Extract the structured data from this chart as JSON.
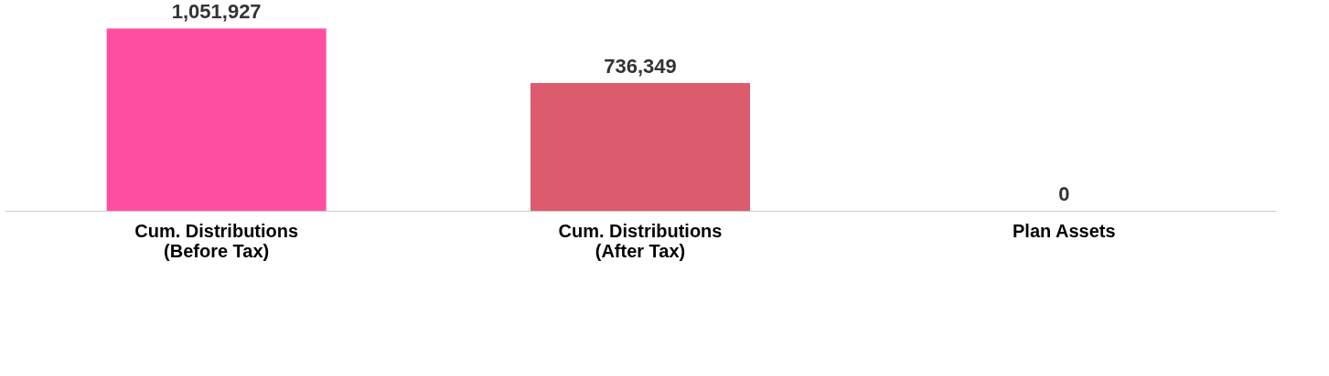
{
  "chart_data": {
    "type": "bar",
    "categories": [
      "Cum. Distributions\n(Before Tax)",
      "Cum. Distributions\n(After Tax)",
      "Plan Assets"
    ],
    "values": [
      1051927,
      736349,
      0
    ],
    "colors": [
      "#ff4fa3",
      "#dc5b6d",
      "#0a1f66"
    ],
    "value_labels": [
      "1,051,927",
      "736,349",
      "0"
    ],
    "grid": false,
    "legend": false
  }
}
